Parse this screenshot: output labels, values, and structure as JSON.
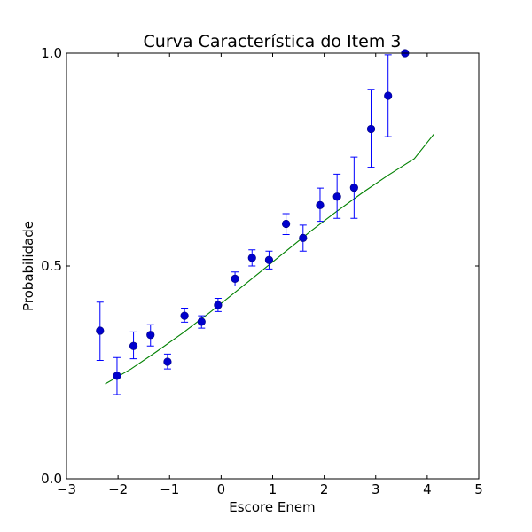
{
  "chart_data": {
    "type": "scatter",
    "title": "Curva Característica do Item 3",
    "xlabel": "Escore Enem",
    "ylabel": "Probabilidade",
    "xlim": [
      -3,
      5
    ],
    "ylim": [
      0.0,
      1.0
    ],
    "x_ticks": [
      -3,
      -2,
      -1,
      0,
      1,
      2,
      3,
      4,
      5
    ],
    "x_tick_labels": [
      "−3",
      "−2",
      "−1",
      "0",
      "1",
      "2",
      "3",
      "4",
      "5"
    ],
    "y_ticks": [
      0.0,
      0.5,
      1.0
    ],
    "y_tick_labels": [
      "0.0",
      "0.5",
      "1.0"
    ],
    "grid": false,
    "colors": {
      "points": "#0000cc",
      "errorbars": "#0000ff",
      "curve": "#008000"
    },
    "series": [
      {
        "kind": "points_with_errorbars",
        "points": [
          {
            "x": -2.35,
            "y": 0.348,
            "lo": 0.278,
            "hi": 0.415
          },
          {
            "x": -2.02,
            "y": 0.242,
            "lo": 0.198,
            "hi": 0.285
          },
          {
            "x": -1.7,
            "y": 0.312,
            "lo": 0.282,
            "hi": 0.345
          },
          {
            "x": -1.37,
            "y": 0.338,
            "lo": 0.312,
            "hi": 0.362
          },
          {
            "x": -1.04,
            "y": 0.275,
            "lo": 0.258,
            "hi": 0.293
          },
          {
            "x": -0.71,
            "y": 0.383,
            "lo": 0.368,
            "hi": 0.401
          },
          {
            "x": -0.38,
            "y": 0.369,
            "lo": 0.354,
            "hi": 0.383
          },
          {
            "x": -0.06,
            "y": 0.408,
            "lo": 0.393,
            "hi": 0.424
          },
          {
            "x": 0.27,
            "y": 0.47,
            "lo": 0.453,
            "hi": 0.486
          },
          {
            "x": 0.6,
            "y": 0.519,
            "lo": 0.5,
            "hi": 0.538
          },
          {
            "x": 0.93,
            "y": 0.514,
            "lo": 0.493,
            "hi": 0.535
          },
          {
            "x": 1.26,
            "y": 0.599,
            "lo": 0.574,
            "hi": 0.623
          },
          {
            "x": 1.59,
            "y": 0.566,
            "lo": 0.535,
            "hi": 0.596
          },
          {
            "x": 1.92,
            "y": 0.643,
            "lo": 0.605,
            "hi": 0.683
          },
          {
            "x": 2.25,
            "y": 0.663,
            "lo": 0.612,
            "hi": 0.716
          },
          {
            "x": 2.58,
            "y": 0.684,
            "lo": 0.612,
            "hi": 0.756
          },
          {
            "x": 2.91,
            "y": 0.822,
            "lo": 0.732,
            "hi": 0.915
          },
          {
            "x": 3.24,
            "y": 0.9,
            "lo": 0.804,
            "hi": 0.996
          },
          {
            "x": 3.57,
            "y": 1.0,
            "lo": 1.0,
            "hi": 1.0
          }
        ]
      },
      {
        "kind": "curve",
        "x": [
          -2.25,
          -1.75,
          -1.25,
          -0.75,
          -0.25,
          0.25,
          0.75,
          1.25,
          1.75,
          2.25,
          2.75,
          3.25,
          3.75,
          4.13
        ],
        "y": [
          0.223,
          0.258,
          0.299,
          0.342,
          0.388,
          0.436,
          0.485,
          0.534,
          0.583,
          0.629,
          0.673,
          0.714,
          0.752,
          0.81
        ]
      }
    ]
  }
}
